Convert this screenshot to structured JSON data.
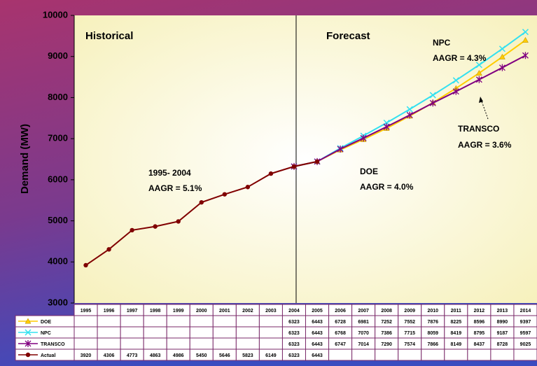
{
  "chart_data": {
    "type": "line",
    "y_axis_label": "Demand (MW)",
    "categories": [
      "1995",
      "1996",
      "1997",
      "1998",
      "1999",
      "2000",
      "2001",
      "2002",
      "2003",
      "2004",
      "2005",
      "2006",
      "2007",
      "2008",
      "2009",
      "2010",
      "2011",
      "2012",
      "2013",
      "2014"
    ],
    "series": [
      {
        "name": "DOE",
        "color": "#ffcc00",
        "marker": "triangle",
        "values": [
          null,
          null,
          null,
          null,
          null,
          null,
          null,
          null,
          null,
          6323,
          6443,
          6728,
          6981,
          7252,
          7552,
          7876,
          8225,
          8596,
          8990,
          9397
        ]
      },
      {
        "name": "NPC",
        "color": "#33e0f0",
        "marker": "x",
        "values": [
          null,
          null,
          null,
          null,
          null,
          null,
          null,
          null,
          null,
          6323,
          6443,
          6768,
          7070,
          7386,
          7715,
          8059,
          8419,
          8795,
          9187,
          9597
        ]
      },
      {
        "name": "TRANSCO",
        "color": "#800080",
        "marker": "star",
        "values": [
          null,
          null,
          null,
          null,
          null,
          null,
          null,
          null,
          null,
          6323,
          6443,
          6747,
          7014,
          7290,
          7574,
          7866,
          8149,
          8437,
          8728,
          9025
        ]
      },
      {
        "name": "Actual",
        "color": "#800000",
        "marker": "circle",
        "values": [
          3920,
          4306,
          4773,
          4863,
          4986,
          5450,
          5646,
          5823,
          6149,
          6323,
          6443,
          null,
          null,
          null,
          null,
          null,
          null,
          null,
          null,
          null
        ]
      }
    ],
    "ylim": [
      3000,
      10000
    ],
    "yticks": [
      3000,
      4000,
      5000,
      6000,
      7000,
      8000,
      9000,
      10000
    ],
    "annotations": [
      "Historical",
      "Forecast",
      "NPC",
      "AAGR = 4.3%",
      "TRANSCO",
      "AAGR = 3.6%",
      "DOE",
      "AAGR = 4.0%",
      "1995- 2004",
      "AAGR = 5.1%"
    ]
  }
}
